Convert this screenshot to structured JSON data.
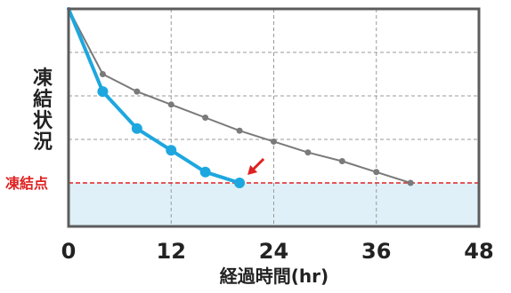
{
  "chart_data": {
    "type": "line",
    "xlabel": "経過時間(hr)",
    "ylabel": "凍結状況",
    "xlim": [
      0,
      48
    ],
    "ylim": [
      0,
      100
    ],
    "xticks": [
      "0",
      "12",
      "24",
      "36",
      "48"
    ],
    "grid": true,
    "reference_line": {
      "label": "凍結点",
      "y": 20,
      "color": "#e02020"
    },
    "below_reference_fill": "#dff0f8",
    "series": [
      {
        "color": "#1ea7df",
        "x": [
          0,
          4,
          8,
          12,
          16,
          20
        ],
        "y": [
          100,
          62,
          45,
          35,
          25,
          20
        ]
      },
      {
        "color": "#7a7a7a",
        "x": [
          0,
          4,
          8,
          12,
          16,
          20,
          24,
          28,
          32,
          36,
          40
        ],
        "y": [
          100,
          70,
          62,
          56,
          50,
          44,
          39,
          34,
          30,
          25,
          20
        ]
      }
    ],
    "arrow_target": {
      "x": 20,
      "y": 20,
      "color": "#e02020"
    }
  }
}
